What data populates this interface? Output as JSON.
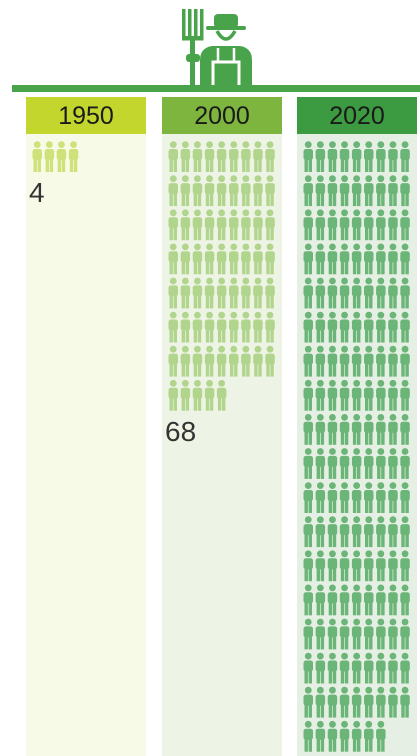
{
  "chart_data": {
    "type": "pictogram",
    "title": "",
    "categories": [
      "1950",
      "2000",
      "2020"
    ],
    "values": [
      4,
      68,
      160
    ],
    "colors": {
      "header": [
        "#c2d62e",
        "#7db53f",
        "#3c9a40"
      ],
      "icons": [
        "#cfe27a",
        "#b2d58e",
        "#6ab577"
      ],
      "column_bg": [
        "#f8fae8",
        "#eef4e5",
        "#e6efe3"
      ],
      "bar": "#49a34a",
      "farmer_icon": "#49a34a"
    },
    "icon": "person-icon",
    "header_icon": "farmer-with-pitchfork-icon"
  }
}
